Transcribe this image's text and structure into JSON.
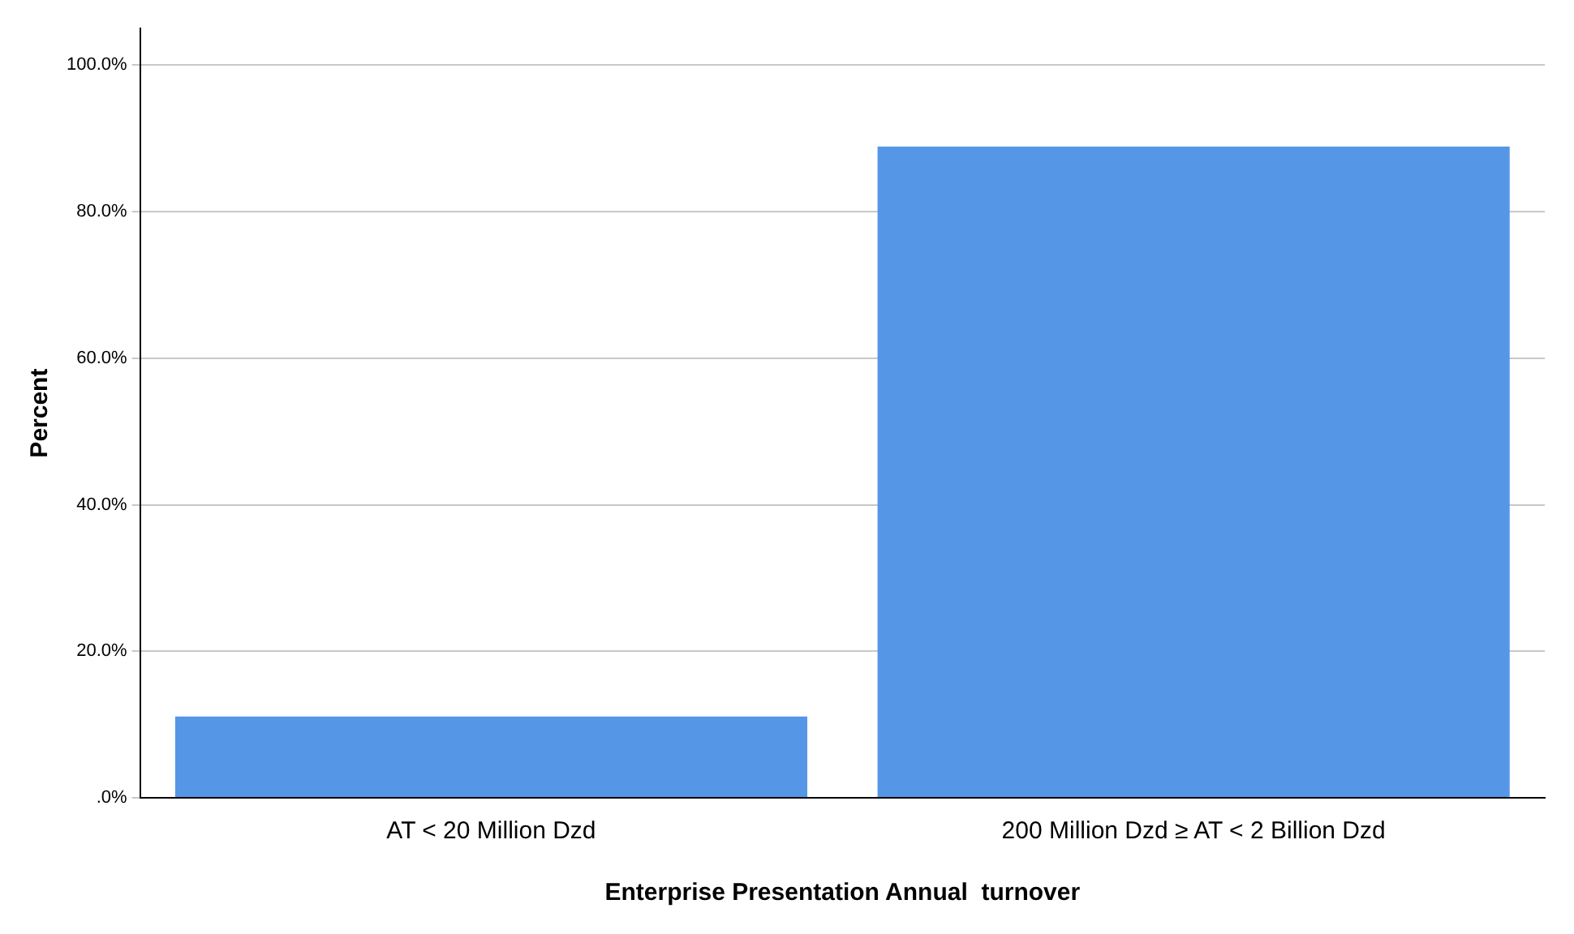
{
  "chart_data": {
    "type": "bar",
    "xlabel": "Enterprise Presentation Annual  turnover",
    "ylabel": "Percent",
    "categories": [
      "AT < 20 Million Dzd",
      "200 Million Dzd ≥ AT < 2 Billion Dzd"
    ],
    "values": [
      11.1,
      88.9
    ],
    "color": "#5596e6",
    "ylim": [
      0,
      105
    ],
    "yticks": [
      {
        "value": 0,
        "label": ".0%"
      },
      {
        "value": 20,
        "label": "20.0%"
      },
      {
        "value": 40,
        "label": "40.0%"
      },
      {
        "value": 60,
        "label": "60.0%"
      },
      {
        "value": 80,
        "label": "80.0%"
      },
      {
        "value": 100,
        "label": "100.0%"
      }
    ],
    "grid": "y",
    "legend": false
  }
}
